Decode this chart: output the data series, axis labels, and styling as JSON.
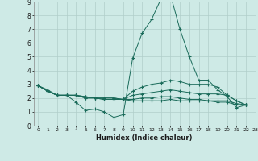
{
  "xlabel": "Humidex (Indice chaleur)",
  "xlim": [
    -0.5,
    23
  ],
  "ylim": [
    0,
    9
  ],
  "xticks": [
    0,
    1,
    2,
    3,
    4,
    5,
    6,
    7,
    8,
    9,
    10,
    11,
    12,
    13,
    14,
    15,
    16,
    17,
    18,
    19,
    20,
    21,
    22,
    23
  ],
  "yticks": [
    0,
    1,
    2,
    3,
    4,
    5,
    6,
    7,
    8,
    9
  ],
  "bg_color": "#ceeae6",
  "grid_color": "#b0ceca",
  "line_color": "#1a6b5a",
  "series": [
    [
      2.9,
      2.6,
      2.2,
      2.2,
      1.7,
      1.1,
      1.2,
      1.0,
      0.6,
      0.8,
      4.9,
      6.7,
      7.7,
      9.2,
      9.5,
      7.0,
      5.0,
      3.3,
      3.3,
      2.6,
      2.1,
      1.3,
      1.5
    ],
    [
      2.9,
      2.5,
      2.2,
      2.2,
      2.2,
      2.1,
      2.0,
      2.0,
      2.0,
      1.9,
      2.5,
      2.8,
      3.0,
      3.1,
      3.3,
      3.2,
      3.0,
      3.0,
      3.0,
      2.8,
      2.2,
      1.8,
      1.5
    ],
    [
      2.9,
      2.5,
      2.2,
      2.2,
      2.2,
      2.1,
      2.0,
      2.0,
      2.0,
      1.9,
      2.2,
      2.3,
      2.4,
      2.5,
      2.6,
      2.5,
      2.4,
      2.3,
      2.3,
      2.3,
      2.2,
      1.8,
      1.5
    ],
    [
      2.9,
      2.5,
      2.2,
      2.2,
      2.2,
      2.0,
      2.0,
      1.9,
      1.9,
      1.9,
      1.9,
      2.0,
      2.0,
      2.1,
      2.1,
      2.0,
      1.9,
      1.9,
      1.8,
      1.8,
      1.8,
      1.6,
      1.5
    ],
    [
      2.9,
      2.5,
      2.2,
      2.2,
      2.2,
      2.0,
      2.0,
      1.9,
      1.9,
      1.9,
      1.8,
      1.8,
      1.8,
      1.8,
      1.9,
      1.8,
      1.8,
      1.8,
      1.8,
      1.7,
      1.7,
      1.5,
      1.5
    ]
  ],
  "figsize": [
    3.2,
    2.0
  ],
  "dpi": 100
}
